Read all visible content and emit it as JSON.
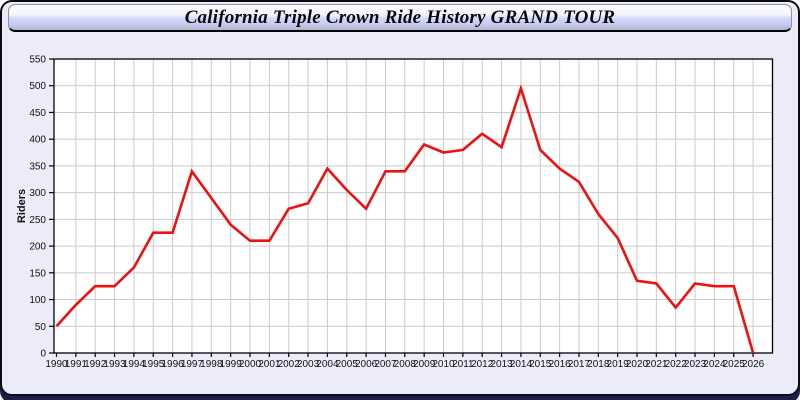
{
  "window": {
    "title": "California Triple Crown Ride History GRAND TOUR"
  },
  "chart_data": {
    "type": "line",
    "title": "California Triple Crown Ride History GRAND TOUR",
    "xlabel": "",
    "ylabel": "Riders",
    "x": [
      1990,
      1991,
      1992,
      1993,
      1994,
      1995,
      1996,
      1997,
      1998,
      1999,
      2000,
      2001,
      2002,
      2003,
      2004,
      2005,
      2006,
      2007,
      2008,
      2009,
      2010,
      2011,
      2012,
      2013,
      2014,
      2015,
      2016,
      2017,
      2018,
      2019,
      2020,
      2021,
      2022,
      2023,
      2024,
      2025,
      2026
    ],
    "series": [
      {
        "name": "Riders",
        "color": "#ee1111",
        "values": [
          50,
          90,
          125,
          125,
          160,
          225,
          225,
          340,
          290,
          240,
          210,
          210,
          270,
          280,
          345,
          305,
          270,
          340,
          340,
          390,
          375,
          380,
          410,
          385,
          495,
          380,
          345,
          320,
          260,
          215,
          135,
          130,
          85,
          130,
          125,
          125,
          0
        ]
      }
    ],
    "ylim": [
      0,
      550
    ],
    "ytick_step": 50,
    "grid": true,
    "legend": "none"
  },
  "colors": {
    "page_background": "#ebebfa",
    "plot_background": "#ffffff",
    "grid_line": "#cbcbcb",
    "axis_line": "#000000",
    "tick_label": "#141414",
    "line": "#ee1111",
    "shadow": "#1d1d45"
  }
}
